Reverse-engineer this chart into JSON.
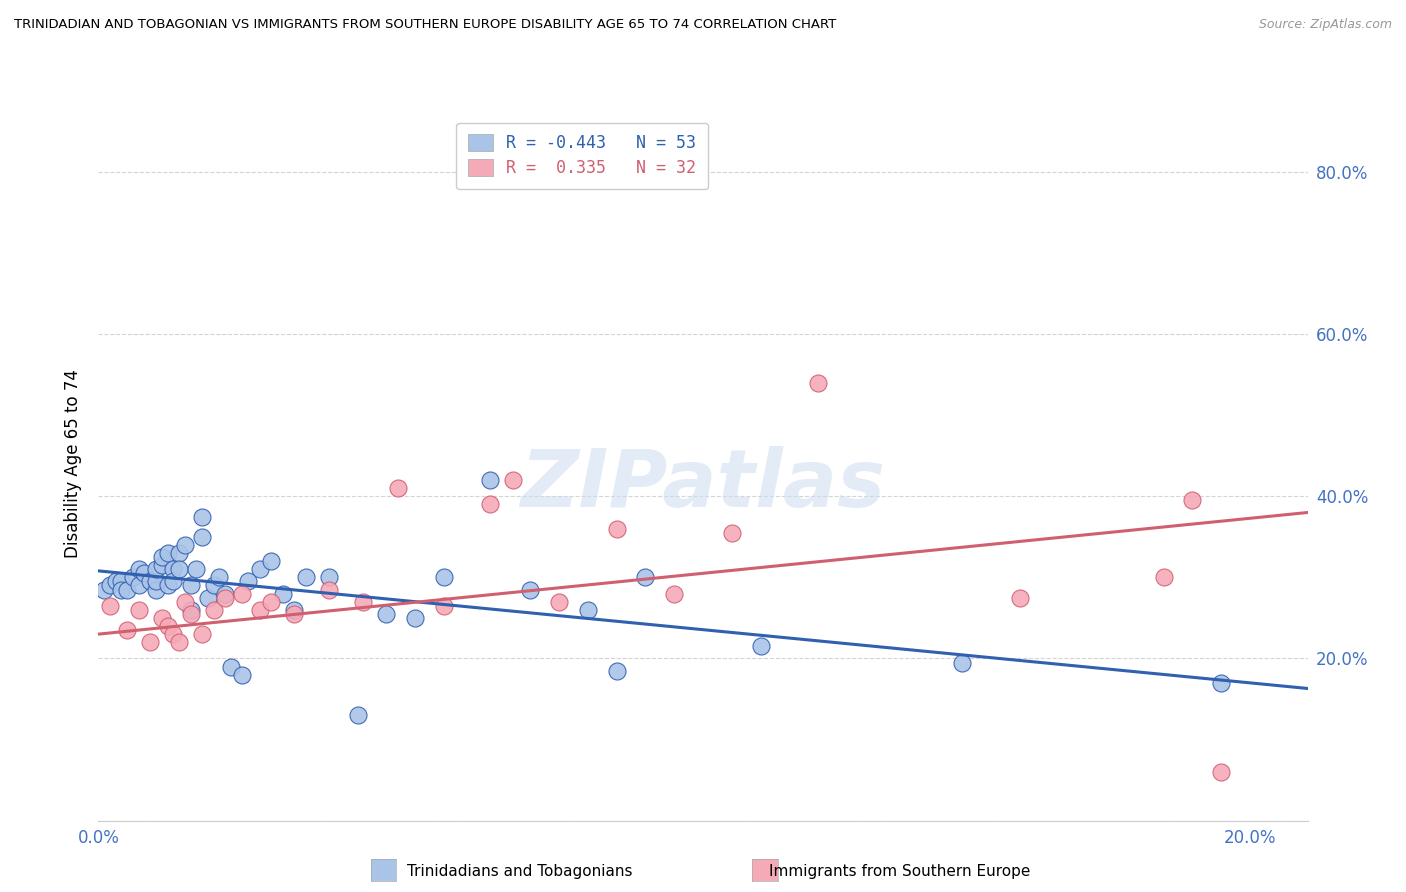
{
  "title": "TRINIDADIAN AND TOBAGONIAN VS IMMIGRANTS FROM SOUTHERN EUROPE DISABILITY AGE 65 TO 74 CORRELATION CHART",
  "source": "Source: ZipAtlas.com",
  "ylabel": "Disability Age 65 to 74",
  "xlim": [
    0.0,
    0.21
  ],
  "ylim": [
    0.0,
    0.88
  ],
  "ytick_values": [
    0.0,
    0.2,
    0.4,
    0.6,
    0.8
  ],
  "xtick_values": [
    0.0,
    0.04,
    0.08,
    0.12,
    0.16,
    0.2
  ],
  "grid_color": "#d0d0d0",
  "background_color": "#ffffff",
  "watermark": "ZIPatlas",
  "legend_r1": "R = -0.443",
  "legend_n1": "N = 53",
  "legend_r2": "R =  0.335",
  "legend_n2": "N = 32",
  "color_blue": "#aac4e8",
  "color_pink": "#f5aab8",
  "line_blue": "#3060b0",
  "line_pink": "#d06070",
  "blue_x": [
    0.001,
    0.002,
    0.003,
    0.004,
    0.004,
    0.005,
    0.006,
    0.007,
    0.007,
    0.008,
    0.009,
    0.01,
    0.01,
    0.01,
    0.011,
    0.011,
    0.012,
    0.012,
    0.013,
    0.013,
    0.014,
    0.014,
    0.015,
    0.016,
    0.016,
    0.017,
    0.018,
    0.018,
    0.019,
    0.02,
    0.021,
    0.022,
    0.023,
    0.025,
    0.026,
    0.028,
    0.03,
    0.032,
    0.034,
    0.036,
    0.04,
    0.045,
    0.05,
    0.055,
    0.06,
    0.068,
    0.075,
    0.085,
    0.09,
    0.095,
    0.115,
    0.15,
    0.195
  ],
  "blue_y": [
    0.285,
    0.29,
    0.295,
    0.295,
    0.285,
    0.285,
    0.3,
    0.29,
    0.31,
    0.305,
    0.295,
    0.285,
    0.295,
    0.31,
    0.315,
    0.325,
    0.33,
    0.29,
    0.31,
    0.295,
    0.33,
    0.31,
    0.34,
    0.29,
    0.26,
    0.31,
    0.35,
    0.375,
    0.275,
    0.29,
    0.3,
    0.28,
    0.19,
    0.18,
    0.295,
    0.31,
    0.32,
    0.28,
    0.26,
    0.3,
    0.3,
    0.13,
    0.255,
    0.25,
    0.3,
    0.42,
    0.285,
    0.26,
    0.185,
    0.3,
    0.215,
    0.195,
    0.17
  ],
  "pink_x": [
    0.002,
    0.005,
    0.007,
    0.009,
    0.011,
    0.012,
    0.013,
    0.014,
    0.015,
    0.016,
    0.018,
    0.02,
    0.022,
    0.025,
    0.028,
    0.03,
    0.034,
    0.04,
    0.046,
    0.052,
    0.06,
    0.068,
    0.072,
    0.08,
    0.09,
    0.1,
    0.11,
    0.125,
    0.16,
    0.185,
    0.19,
    0.195
  ],
  "pink_y": [
    0.265,
    0.235,
    0.26,
    0.22,
    0.25,
    0.24,
    0.23,
    0.22,
    0.27,
    0.255,
    0.23,
    0.26,
    0.275,
    0.28,
    0.26,
    0.27,
    0.255,
    0.285,
    0.27,
    0.41,
    0.265,
    0.39,
    0.42,
    0.27,
    0.36,
    0.28,
    0.355,
    0.54,
    0.275,
    0.3,
    0.395,
    0.06
  ],
  "blue_line_x": [
    0.0,
    0.21
  ],
  "blue_line_y": [
    0.308,
    0.163
  ],
  "pink_line_x": [
    0.0,
    0.21
  ],
  "pink_line_y": [
    0.23,
    0.38
  ]
}
